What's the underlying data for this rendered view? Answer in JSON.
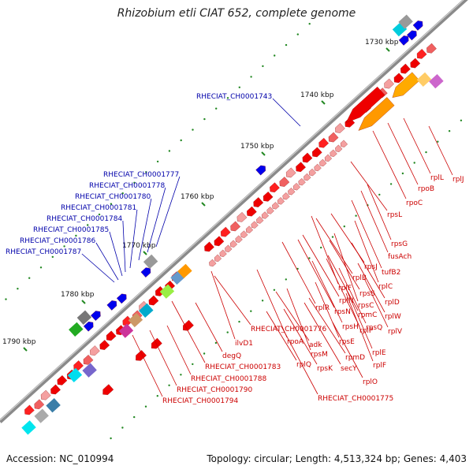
{
  "title": "Rhizobium etli CIAT 652, complete genome",
  "footer": {
    "accession": "Accession: NC_010994",
    "summary": "Topology: circular; Length: 4,513,324 bp; Genes: 4,403"
  },
  "colors": {
    "backbone": "#8a8a8a",
    "forward_gene": "#ee0000",
    "reverse_gene": "#0000ee",
    "tick": "#228822",
    "ruler_label": "#111111",
    "blue_label": "#0000aa",
    "red_label": "#cc0000"
  },
  "ruler": [
    "1730 kbp",
    "1740 kbp",
    "1750 kbp",
    "1760 kbp",
    "1770 kbp",
    "1780 kbp",
    "1790 kbp"
  ],
  "left_labels": [
    "RHECIAT_CH0001743",
    "RHECIAT_CH0001777",
    "RHECIAT_CH0001778",
    "RHECIAT_CH0001780",
    "RHECIAT_CH0001781",
    "RHECIAT_CH0001784",
    "RHECIAT_CH0001785",
    "RHECIAT_CH0001786",
    "RHECIAT_CH0001787"
  ],
  "right_labels": [
    "rplJ",
    "rplL",
    "rpoB",
    "rpoC",
    "rpsL",
    "rpsG",
    "fusAch",
    "tufB2",
    "rpsJ",
    "rplB",
    "rplC",
    "rplF",
    "rpsS",
    "rplD",
    "rplN",
    "rpsC",
    "rplW",
    "rpmC",
    "rplR",
    "rpsN",
    "rplV",
    "rpsQ",
    "rpsH",
    "rplP",
    "RHECIAT_CH0001776",
    "rpsE",
    "rplE",
    "rpoA",
    "adk",
    "rpmD",
    "rpsM",
    "rplF",
    "rplQ",
    "rpsK",
    "secY",
    "ilvD1",
    "degQ",
    "rplO",
    "RHECIAT_CH0001783",
    "RHECIAT_CH0001775",
    "RHECIAT_CH0001788",
    "RHECIAT_CH0001790",
    "RHECIAT_CH0001794"
  ]
}
